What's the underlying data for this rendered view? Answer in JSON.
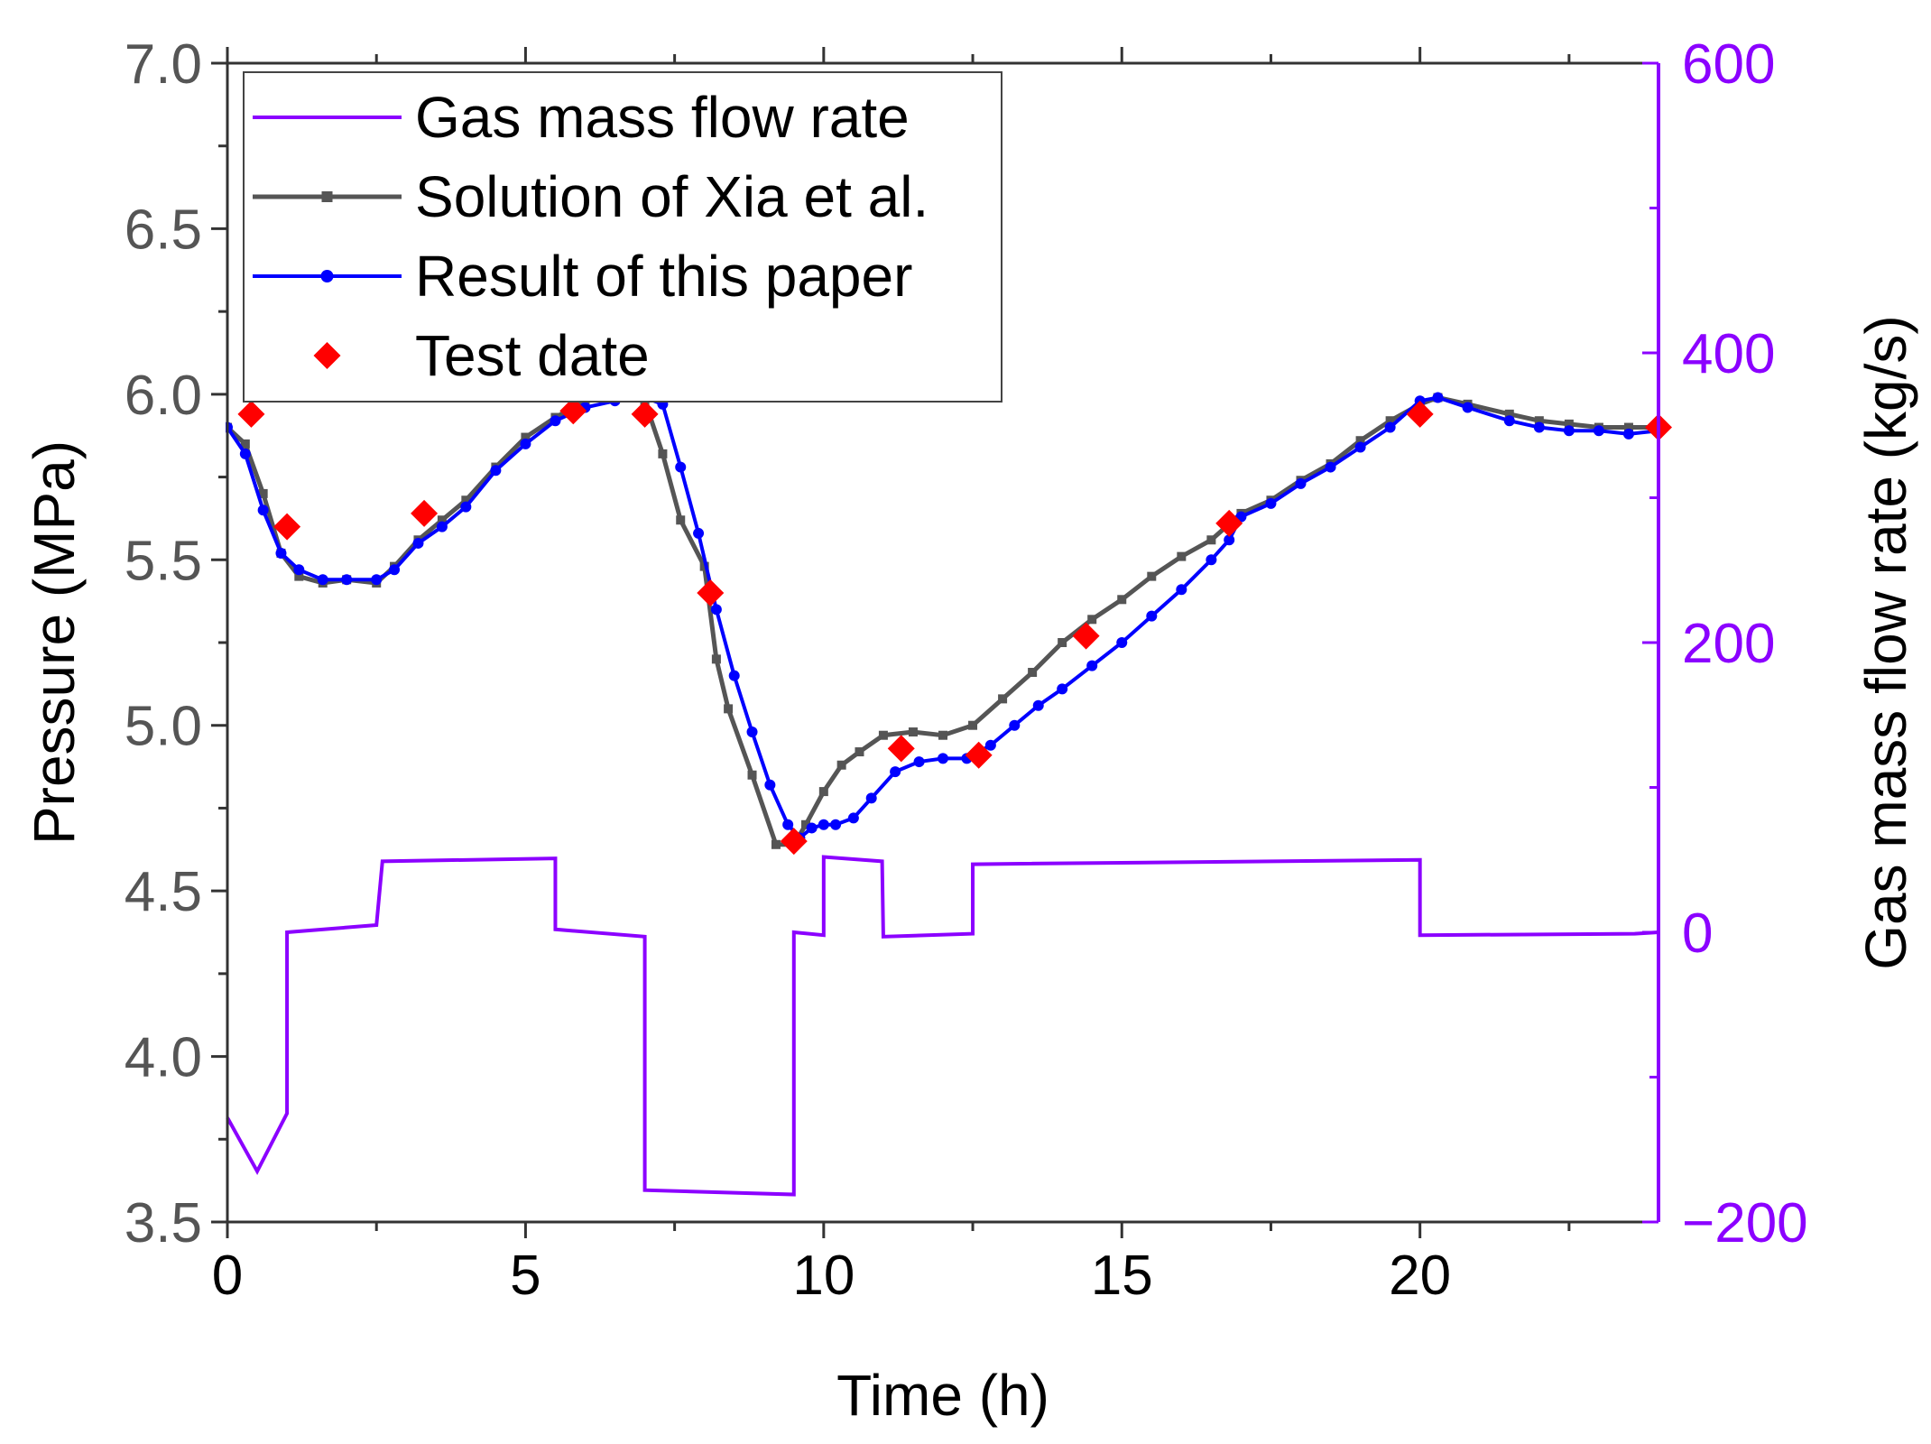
{
  "chart_data": {
    "type": "line",
    "xlabel": "Time (h)",
    "ylabel": "Pressure (MPa)",
    "y2label": "Gas mass flow rate (kg/s)",
    "xlim": [
      0,
      24
    ],
    "ylim": [
      3.5,
      7.0
    ],
    "y2lim": [
      -200,
      600
    ],
    "x_ticks": [
      0,
      5,
      10,
      15,
      20
    ],
    "x_tick_labels": [
      "0",
      "5",
      "10",
      "15",
      "20"
    ],
    "y_ticks": [
      3.5,
      4.0,
      4.5,
      5.0,
      5.5,
      6.0,
      6.5,
      7.0
    ],
    "y_tick_labels": [
      "3.5",
      "4.0",
      "4.5",
      "5.0",
      "5.5",
      "6.0",
      "6.5",
      "7.0"
    ],
    "y2_ticks": [
      -200,
      0,
      200,
      400,
      600
    ],
    "y2_tick_labels": [
      "−200",
      "0",
      "200",
      "400",
      "600"
    ],
    "legend_position": "top-left",
    "colors": {
      "flow": "#8B00FF",
      "xia": "#555555",
      "paper": "#0000FF",
      "test": "#FF0000",
      "left_axis": "#555555",
      "right_axis": "#8B00FF"
    },
    "series": [
      {
        "name": "Gas mass flow rate",
        "axis": "right",
        "style": "line",
        "x": [
          0,
          0.5,
          1.0,
          1.0,
          2.5,
          2.6,
          5.5,
          5.5,
          7.0,
          7.0,
          9.5,
          9.5,
          10.0,
          10.0,
          10.98,
          11.0,
          12.5,
          12.5,
          20.0,
          20.0,
          23.6,
          24.0
        ],
        "values": [
          -128,
          -165,
          -125,
          0,
          5,
          49,
          51,
          2,
          -3,
          -178,
          -181,
          0,
          -2,
          52,
          49,
          -3,
          -1,
          47,
          50,
          -2,
          -1,
          0
        ]
      },
      {
        "name": "Solution of Xia et al.",
        "axis": "left",
        "style": "line-square",
        "x": [
          0,
          0.3,
          0.6,
          0.9,
          1.2,
          1.6,
          2.0,
          2.5,
          2.8,
          3.2,
          3.6,
          4.0,
          4.5,
          5.0,
          5.5,
          6.0,
          6.5,
          7.0,
          7.3,
          7.6,
          8.0,
          8.2,
          8.4,
          8.8,
          9.2,
          9.5,
          9.7,
          10.0,
          10.3,
          10.6,
          11.0,
          11.5,
          12.0,
          12.5,
          13.0,
          13.5,
          14.0,
          14.5,
          15.0,
          15.5,
          16.0,
          16.5,
          17.0,
          17.5,
          18.0,
          18.5,
          19.0,
          19.5,
          20.0,
          20.3,
          20.8,
          21.5,
          22.0,
          22.5,
          23.0,
          23.5,
          24.0
        ],
        "values": [
          5.9,
          5.85,
          5.7,
          5.52,
          5.45,
          5.43,
          5.44,
          5.43,
          5.48,
          5.56,
          5.62,
          5.68,
          5.78,
          5.87,
          5.93,
          5.98,
          6.0,
          5.98,
          5.82,
          5.62,
          5.48,
          5.2,
          5.05,
          4.85,
          4.64,
          4.64,
          4.7,
          4.8,
          4.88,
          4.92,
          4.97,
          4.98,
          4.97,
          5.0,
          5.08,
          5.16,
          5.25,
          5.32,
          5.38,
          5.45,
          5.51,
          5.56,
          5.64,
          5.68,
          5.74,
          5.79,
          5.86,
          5.92,
          5.97,
          5.99,
          5.97,
          5.94,
          5.92,
          5.91,
          5.9,
          5.9,
          5.9
        ]
      },
      {
        "name": "Result of this paper",
        "axis": "left",
        "style": "line-dot",
        "x": [
          0,
          0.3,
          0.6,
          0.9,
          1.2,
          1.6,
          2.0,
          2.5,
          2.8,
          3.2,
          3.6,
          4.0,
          4.5,
          5.0,
          5.5,
          6.0,
          6.5,
          7.0,
          7.3,
          7.6,
          7.9,
          8.2,
          8.5,
          8.8,
          9.1,
          9.4,
          9.6,
          9.8,
          10.0,
          10.2,
          10.5,
          10.8,
          11.2,
          11.6,
          12.0,
          12.4,
          12.8,
          13.2,
          13.6,
          14.0,
          14.5,
          15.0,
          15.5,
          16.0,
          16.5,
          16.8,
          17.0,
          17.5,
          18.0,
          18.5,
          19.0,
          19.5,
          20.0,
          20.3,
          20.8,
          21.5,
          22.0,
          22.5,
          23.0,
          23.5,
          24.0
        ],
        "values": [
          5.9,
          5.82,
          5.65,
          5.52,
          5.47,
          5.44,
          5.44,
          5.44,
          5.47,
          5.55,
          5.6,
          5.66,
          5.77,
          5.85,
          5.92,
          5.96,
          5.98,
          5.99,
          5.97,
          5.78,
          5.58,
          5.35,
          5.15,
          4.98,
          4.82,
          4.7,
          4.66,
          4.69,
          4.7,
          4.7,
          4.72,
          4.78,
          4.86,
          4.89,
          4.9,
          4.9,
          4.94,
          5.0,
          5.06,
          5.11,
          5.18,
          5.25,
          5.33,
          5.41,
          5.5,
          5.56,
          5.63,
          5.67,
          5.73,
          5.78,
          5.84,
          5.9,
          5.98,
          5.99,
          5.96,
          5.92,
          5.9,
          5.89,
          5.89,
          5.88,
          5.89
        ]
      },
      {
        "name": "Test date",
        "axis": "left",
        "style": "marker-diamond",
        "x": [
          0.4,
          1.0,
          3.3,
          5.8,
          7.0,
          8.1,
          9.5,
          11.3,
          12.6,
          14.4,
          16.8,
          20.0,
          24.0
        ],
        "values": [
          5.94,
          5.6,
          5.64,
          5.95,
          5.94,
          5.4,
          4.65,
          4.93,
          4.91,
          5.27,
          5.61,
          5.94,
          5.9
        ]
      }
    ]
  }
}
